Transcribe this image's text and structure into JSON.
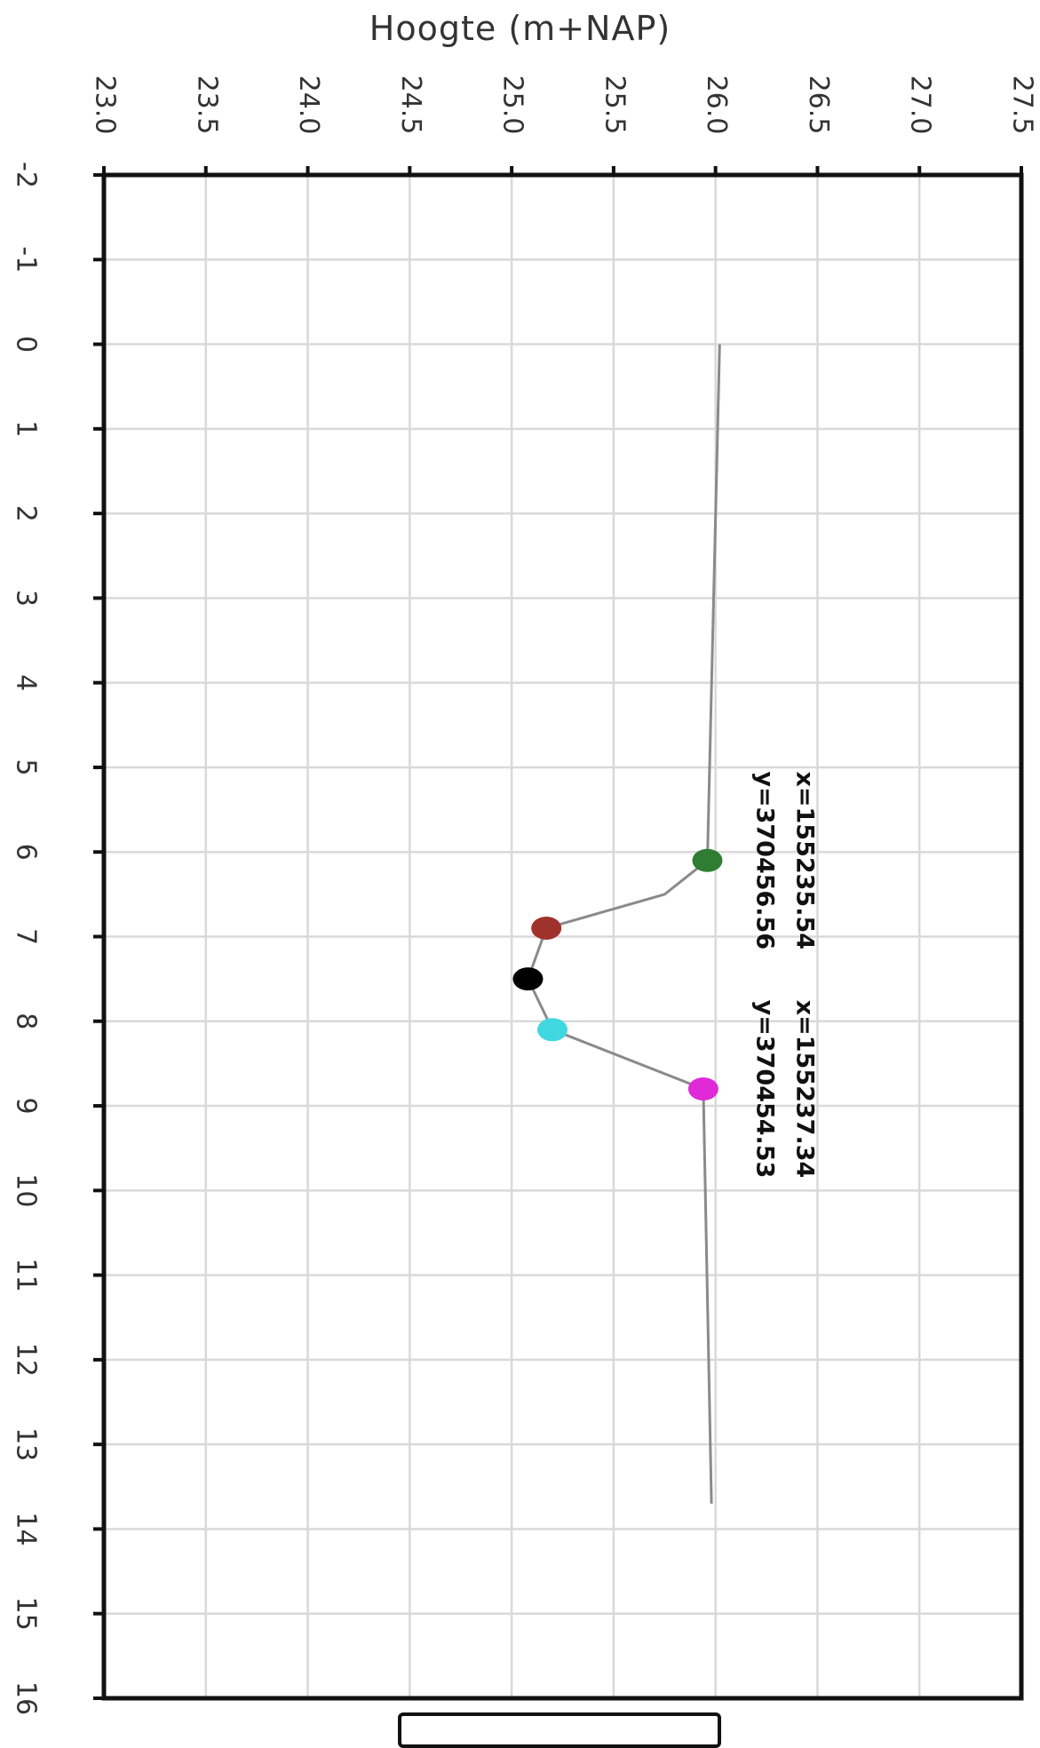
{
  "chart_data": {
    "type": "line",
    "title": "",
    "xlabel": "",
    "ylabel": "Hoogte (m+NAP)",
    "xlim": [
      -2,
      16
    ],
    "ylim": [
      23.0,
      27.5
    ],
    "x_ticks": [
      "-2",
      "-1",
      "0",
      "1",
      "2",
      "3",
      "4",
      "5",
      "6",
      "7",
      "8",
      "9",
      "10",
      "11",
      "12",
      "13",
      "14",
      "15",
      "16"
    ],
    "y_ticks": [
      "23.0",
      "23.5",
      "24.0",
      "24.5",
      "25.0",
      "25.5",
      "26.0",
      "26.5",
      "27.0",
      "27.5"
    ],
    "grid": true,
    "orientation": "rotated 90° clockwise",
    "series": [
      {
        "color": "#8a8a8a",
        "points": [
          {
            "x": 0.0,
            "y": 26.02
          },
          {
            "x": 6.1,
            "y": 25.96
          },
          {
            "x": 6.5,
            "y": 25.75
          },
          {
            "x": 6.9,
            "y": 25.17
          },
          {
            "x": 7.5,
            "y": 25.08
          },
          {
            "x": 8.1,
            "y": 25.2
          },
          {
            "x": 8.8,
            "y": 25.94
          },
          {
            "x": 13.7,
            "y": 25.98
          }
        ]
      }
    ],
    "markers": [
      {
        "x": 6.1,
        "y": 25.96,
        "color": "#2e7d32"
      },
      {
        "x": 6.9,
        "y": 25.17,
        "color": "#a0322d"
      },
      {
        "x": 7.5,
        "y": 25.08,
        "color": "#000000"
      },
      {
        "x": 8.1,
        "y": 25.2,
        "color": "#40d8e0"
      },
      {
        "x": 8.8,
        "y": 25.94,
        "color": "#e02ad8"
      }
    ],
    "annotations": [
      {
        "lines": [
          "x=155235.54",
          "y=370456.56"
        ],
        "x": 6.1
      },
      {
        "lines": [
          "x=155237.34",
          "y=370454.53"
        ],
        "x": 8.8
      }
    ]
  }
}
